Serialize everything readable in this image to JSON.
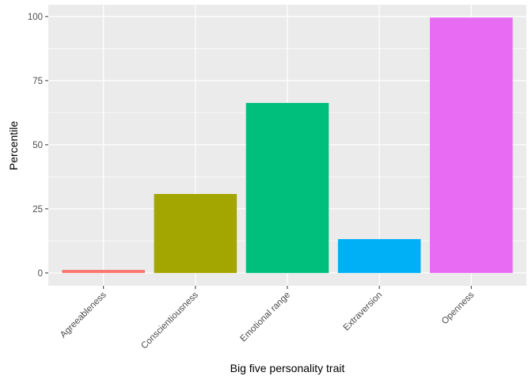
{
  "chart_data": {
    "type": "bar",
    "title": "",
    "xlabel": "Big five personality trait",
    "ylabel": "Percentile",
    "categories": [
      "Agreeableness",
      "Conscientiousness",
      "Emotional range",
      "Extraversion",
      "Openness"
    ],
    "values": [
      1.2,
      30.8,
      66.3,
      13.2,
      99.6
    ],
    "colors": [
      "#F8766D",
      "#A3A500",
      "#00BF7D",
      "#00B0F6",
      "#E76BF3"
    ],
    "ylim": [
      -5.0,
      104.6
    ],
    "yticks": [
      0,
      25,
      50,
      75,
      100
    ],
    "ytick_labels": [
      "0",
      "25",
      "50",
      "75",
      "100"
    ],
    "grid": true,
    "legend": "none",
    "panel_background": "#EBEBEB"
  }
}
